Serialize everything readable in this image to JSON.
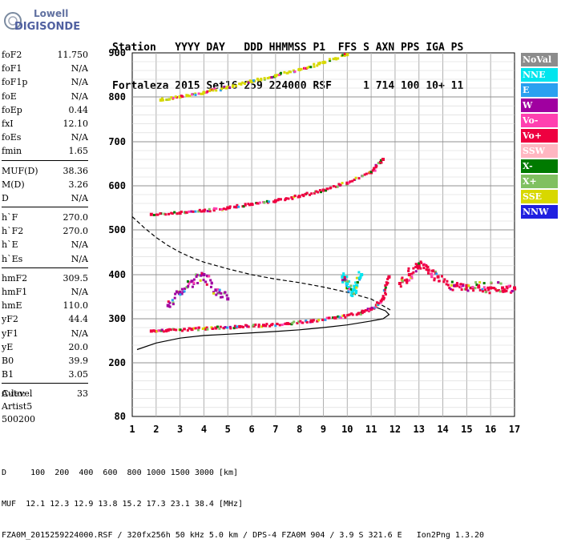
{
  "logo": {
    "line1": "Lowell",
    "line2": "DIGISONDE"
  },
  "header": {
    "line1": "Station   YYYY DAY   DDD HHMMSS P1  FFS S AXN PPS IGA PS",
    "line2": "Fortaleza 2015 Set16 259 224000 RSF     1 714 100 10+ 11"
  },
  "params": [
    {
      "name": "foF2",
      "value": "11.750"
    },
    {
      "name": "foF1",
      "value": "N/A"
    },
    {
      "name": "foF1p",
      "value": "N/A"
    },
    {
      "name": "foE",
      "value": "N/A"
    },
    {
      "name": "foEp",
      "value": "0.44"
    },
    {
      "name": "fxI",
      "value": "12.10"
    },
    {
      "name": "foEs",
      "value": "N/A"
    },
    {
      "name": "fmin",
      "value": "1.65"
    },
    {
      "name": "MUF(D)",
      "value": "38.36"
    },
    {
      "name": "M(D)",
      "value": "3.26"
    },
    {
      "name": "D",
      "value": "N/A"
    },
    {
      "name": "h`F",
      "value": "270.0"
    },
    {
      "name": "h`F2",
      "value": "270.0"
    },
    {
      "name": "h`E",
      "value": "N/A"
    },
    {
      "name": "h`Es",
      "value": "N/A"
    },
    {
      "name": "hmF2",
      "value": "309.5"
    },
    {
      "name": "hmF1",
      "value": "N/A"
    },
    {
      "name": "hmE",
      "value": "110.0"
    },
    {
      "name": "yF2",
      "value": "44.4"
    },
    {
      "name": "yF1",
      "value": "N/A"
    },
    {
      "name": "yE",
      "value": "20.0"
    },
    {
      "name": "B0",
      "value": "39.9"
    },
    {
      "name": "B1",
      "value": "3.05"
    },
    {
      "name": "C-level",
      "value": "33"
    }
  ],
  "auto": {
    "line1": "Auto:",
    "line2": "Artist5",
    "line3": "500200"
  },
  "legend": [
    {
      "label": "NoVal",
      "color": "#8c8c8c"
    },
    {
      "label": "NNE",
      "color": "#00e5ee"
    },
    {
      "label": "E",
      "color": "#2aa0f0"
    },
    {
      "label": "W",
      "color": "#a000a0"
    },
    {
      "label": "Vo-",
      "color": "#ff40b0"
    },
    {
      "label": "Vo+",
      "color": "#ee0040"
    },
    {
      "label": "SSW",
      "color": "#ffb6c1"
    },
    {
      "label": "X-",
      "color": "#007a00"
    },
    {
      "label": "X+",
      "color": "#80c060"
    },
    {
      "label": "SSE",
      "color": "#d8d800"
    },
    {
      "label": "NNW",
      "color": "#2020e0"
    }
  ],
  "footer": {
    "line1": "D     100  200  400  600  800 1000 1500 3000 [km]",
    "line2": "MUF  12.1 12.3 12.9 13.8 15.2 17.3 23.1 38.4 [MHz]",
    "line3": "FZA0M_2015259224000.RSF / 320fx256h 50 kHz 5.0 km / DPS-4 FZA0M 904 / 3.9 S 321.6 E   Ion2Png 1.3.20"
  },
  "chart_data": {
    "type": "scatter",
    "xlim": [
      1,
      17
    ],
    "ylim": [
      80,
      900
    ],
    "x_ticks": [
      1,
      2,
      3,
      4,
      5,
      6,
      7,
      8,
      9,
      10,
      11,
      12,
      13,
      14,
      15,
      16,
      17
    ],
    "y_ticks": [
      80,
      200,
      300,
      400,
      500,
      600,
      700,
      800,
      900
    ],
    "grid": true,
    "series": [
      {
        "name": "O-trace F2",
        "color_key": "Vo+",
        "x": [
          1.8,
          2.5,
          3.5,
          4.5,
          5.5,
          6.5,
          7.5,
          8.5,
          9.5,
          10.5,
          11.0,
          11.5,
          11.75
        ],
        "y": [
          272,
          274,
          276,
          279,
          282,
          285,
          289,
          295,
          302,
          312,
          322,
          345,
          395
        ]
      },
      {
        "name": "2F trace",
        "color_key": "Vo+",
        "x": [
          1.8,
          3,
          4,
          5,
          6,
          7,
          8,
          9,
          10,
          11,
          11.5
        ],
        "y": [
          535,
          538,
          543,
          550,
          558,
          566,
          576,
          590,
          606,
          630,
          660
        ]
      },
      {
        "name": "3F trace",
        "color_key": "SSE",
        "x": [
          2.2,
          3,
          4,
          5,
          6,
          7,
          8,
          9,
          10
        ],
        "y": [
          793,
          800,
          810,
          822,
          835,
          848,
          862,
          878,
          896
        ]
      },
      {
        "name": "spread F",
        "color_key": "Vo+",
        "x": [
          12.2,
          12.6,
          13.0,
          13.4,
          13.8,
          14.5,
          15.0,
          15.5,
          16.0,
          16.5,
          17.0
        ],
        "y": [
          380,
          400,
          420,
          410,
          395,
          375,
          375,
          372,
          370,
          370,
          370
        ]
      },
      {
        "name": "W echoes",
        "color_key": "W",
        "x": [
          2.5,
          3,
          3.5,
          4,
          4.5,
          5
        ],
        "y": [
          330,
          360,
          385,
          400,
          365,
          345
        ]
      },
      {
        "name": "NNE echoes",
        "color_key": "NNE",
        "x": [
          9.8,
          10,
          10.2,
          10.4,
          10.6
        ],
        "y": [
          395,
          380,
          360,
          375,
          400
        ]
      }
    ],
    "profile_lines": [
      {
        "name": "profile solid",
        "x": [
          1.2,
          2,
          3,
          4,
          5,
          6,
          7,
          8,
          9,
          10,
          11,
          11.5,
          11.75,
          11.6,
          11.2
        ],
        "y": [
          230,
          245,
          256,
          262,
          265,
          268,
          271,
          275,
          280,
          286,
          295,
          300,
          309.5,
          318,
          326
        ]
      },
      {
        "name": "profile dashed",
        "x": [
          1,
          1.5,
          2,
          2.5,
          3,
          3.5,
          4,
          5,
          6,
          7,
          8,
          9,
          10,
          11,
          11.8
        ],
        "y": [
          530,
          505,
          483,
          465,
          450,
          438,
          428,
          413,
          400,
          390,
          382,
          372,
          360,
          345,
          320
        ]
      }
    ]
  }
}
